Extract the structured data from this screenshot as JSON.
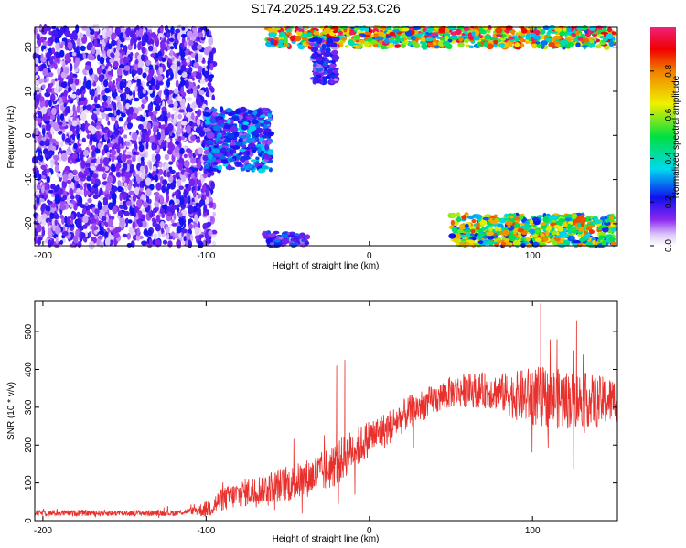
{
  "title": "S174.2025.149.22.53.C26",
  "colors": {
    "snr_line": "#e8302c",
    "axis": "#000000",
    "background": "#ffffff"
  },
  "chart_data": [
    {
      "id": "spectrogram",
      "type": "heatmap",
      "xlabel": "Height of straight line (km)",
      "ylabel": "Frequency (Hz)",
      "xlim": [
        -205,
        152
      ],
      "ylim": [
        -25,
        24.5
      ],
      "x_ticks": [
        -200,
        -100,
        0,
        100
      ],
      "y_ticks": [
        20,
        10,
        0,
        -10,
        -20
      ],
      "colorbar": {
        "label": "Normalized spectral amplitude",
        "range": [
          0,
          1
        ],
        "ticks": [
          "0.0",
          "0.2",
          "0.4",
          "0.6",
          "0.8"
        ],
        "colormap": "white-purple-blue-cyan-green-yellow-red-magenta"
      },
      "regions": [
        {
          "description": "broadband noise",
          "x": [
            -205,
            -95
          ],
          "y": [
            -25,
            24.5
          ],
          "amplitude": 0.1
        },
        {
          "description": "signal near 0 Hz",
          "x": [
            -100,
            -60
          ],
          "y": [
            -8,
            6
          ],
          "amplitude": 0.25
        },
        {
          "description": "signal at upper frequency edge",
          "x": [
            -62,
            150
          ],
          "y": [
            20,
            24.5
          ],
          "amplitude": 0.7
        },
        {
          "description": "branch descending",
          "x": [
            -35,
            -20
          ],
          "y": [
            12,
            22
          ],
          "amplitude": 0.2
        },
        {
          "description": "signal at lower frequency edge",
          "x": [
            50,
            150
          ],
          "y": [
            -25,
            -18
          ],
          "amplitude": 0.6
        },
        {
          "description": "weak lower edge",
          "x": [
            -65,
            -38
          ],
          "y": [
            -25,
            -22
          ],
          "amplitude": 0.2
        }
      ]
    },
    {
      "id": "snr",
      "type": "line",
      "xlabel": "Height of straight line (km)",
      "ylabel": "SNR (10 * v/v)",
      "xlim": [
        -205,
        152
      ],
      "ylim": [
        0,
        580
      ],
      "x_ticks": [
        -200,
        -100,
        0,
        100
      ],
      "y_ticks": [
        0,
        100,
        200,
        300,
        400,
        500
      ],
      "trend": {
        "x": [
          -205,
          -160,
          -120,
          -100,
          -90,
          -80,
          -70,
          -60,
          -50,
          -40,
          -30,
          -20,
          -15,
          -10,
          -5,
          0,
          10,
          20,
          30,
          40,
          50,
          60,
          70,
          80,
          90,
          100,
          110,
          120,
          130,
          140,
          152
        ],
        "y": [
          20,
          20,
          20,
          30,
          55,
          70,
          80,
          90,
          95,
          110,
          125,
          150,
          170,
          190,
          200,
          220,
          240,
          275,
          300,
          320,
          340,
          345,
          345,
          340,
          330,
          330,
          325,
          320,
          320,
          315,
          320
        ]
      },
      "noise_amplitude": {
        "x": [
          -205,
          -110,
          -95,
          -70,
          -40,
          -20,
          0,
          40,
          80,
          100,
          120,
          152
        ],
        "y": [
          8,
          8,
          30,
          40,
          50,
          60,
          50,
          40,
          50,
          80,
          80,
          60
        ]
      },
      "peaks": [
        {
          "x": -15,
          "y": 425
        },
        {
          "x": -20,
          "y": 410
        },
        {
          "x": 105,
          "y": 575
        },
        {
          "x": 127,
          "y": 530
        },
        {
          "x": 145,
          "y": 500
        },
        {
          "x": 115,
          "y": 480
        },
        {
          "x": 125,
          "y": 135
        }
      ]
    }
  ]
}
